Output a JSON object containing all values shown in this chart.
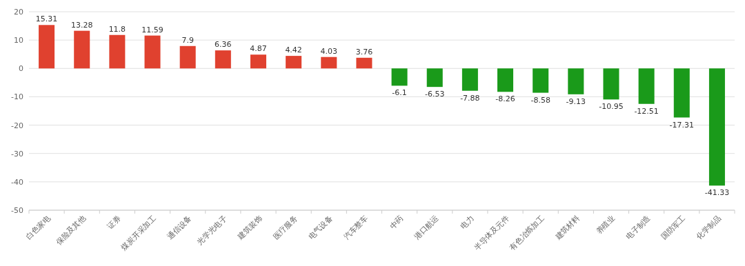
{
  "chart_data": {
    "type": "bar",
    "categories": [
      "白色家电",
      "保险及其他",
      "证券",
      "煤炭开采加工",
      "通信设备",
      "光学光电子",
      "建筑装饰",
      "医疗服务",
      "电气设备",
      "汽车整车",
      "中药",
      "港口航运",
      "电力",
      "半导体及元件",
      "有色冶炼加工",
      "建筑材料",
      "养殖业",
      "电子制造",
      "国防军工",
      "化学制品"
    ],
    "values": [
      15.31,
      13.28,
      11.8,
      11.59,
      7.9,
      6.36,
      4.87,
      4.42,
      4.03,
      3.76,
      -6.1,
      -6.53,
      -7.88,
      -8.26,
      -8.58,
      -9.13,
      -10.95,
      -12.51,
      -17.31,
      -41.33
    ],
    "colors": [
      "#e0412f",
      "#e0412f",
      "#e0412f",
      "#e0412f",
      "#e0412f",
      "#e0412f",
      "#e0412f",
      "#e0412f",
      "#e0412f",
      "#e0412f",
      "#1a9a1a",
      "#1a9a1a",
      "#1a9a1a",
      "#1a9a1a",
      "#1a9a1a",
      "#1a9a1a",
      "#1a9a1a",
      "#1a9a1a",
      "#1a9a1a",
      "#1a9a1a"
    ],
    "ylim": [
      -50,
      20
    ],
    "yticks": [
      -50,
      -40,
      -30,
      -20,
      -10,
      0,
      10,
      20
    ],
    "grid": "y",
    "data_labels": true
  }
}
